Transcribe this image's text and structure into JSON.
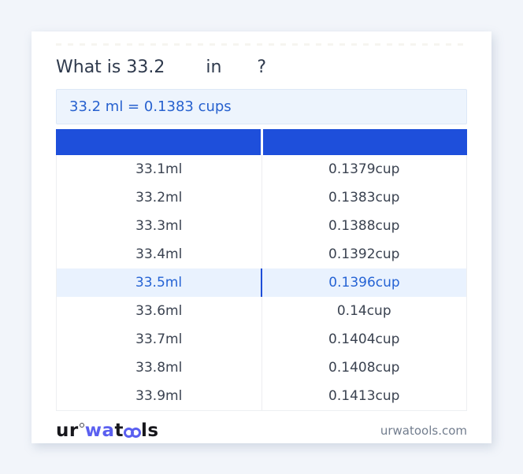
{
  "title": {
    "prefix": "What is 33.2",
    "middle": "in",
    "suffix": "?"
  },
  "result": {
    "text": "33.2 ml = 0.1383 cups"
  },
  "table": {
    "header": {
      "col1": "",
      "col2": ""
    },
    "rows": [
      {
        "ml": "33.1ml",
        "cup": "0.1379cup",
        "highlight": false
      },
      {
        "ml": "33.2ml",
        "cup": "0.1383cup",
        "highlight": false
      },
      {
        "ml": "33.3ml",
        "cup": "0.1388cup",
        "highlight": false
      },
      {
        "ml": "33.4ml",
        "cup": "0.1392cup",
        "highlight": false
      },
      {
        "ml": "33.5ml",
        "cup": "0.1396cup",
        "highlight": true
      },
      {
        "ml": "33.6ml",
        "cup": "0.14cup",
        "highlight": false
      },
      {
        "ml": "33.7ml",
        "cup": "0.1404cup",
        "highlight": false
      },
      {
        "ml": "33.8ml",
        "cup": "0.1408cup",
        "highlight": false
      },
      {
        "ml": "33.9ml",
        "cup": "0.1413cup",
        "highlight": false
      }
    ]
  },
  "footer": {
    "logo": {
      "part1": "ur",
      "part2": "wa",
      "part3": "t",
      "part4": "ls"
    },
    "domain": "urwatools.com"
  },
  "colors": {
    "page_background": "#f2f5fa",
    "header_blue": "#1e4fdb",
    "highlight_row_bg": "#e9f2fe",
    "highlight_text": "#2563d4",
    "result_box_bg": "#edf4fd",
    "result_text": "#2761cf",
    "logo_accent": "#5a5ff0"
  }
}
